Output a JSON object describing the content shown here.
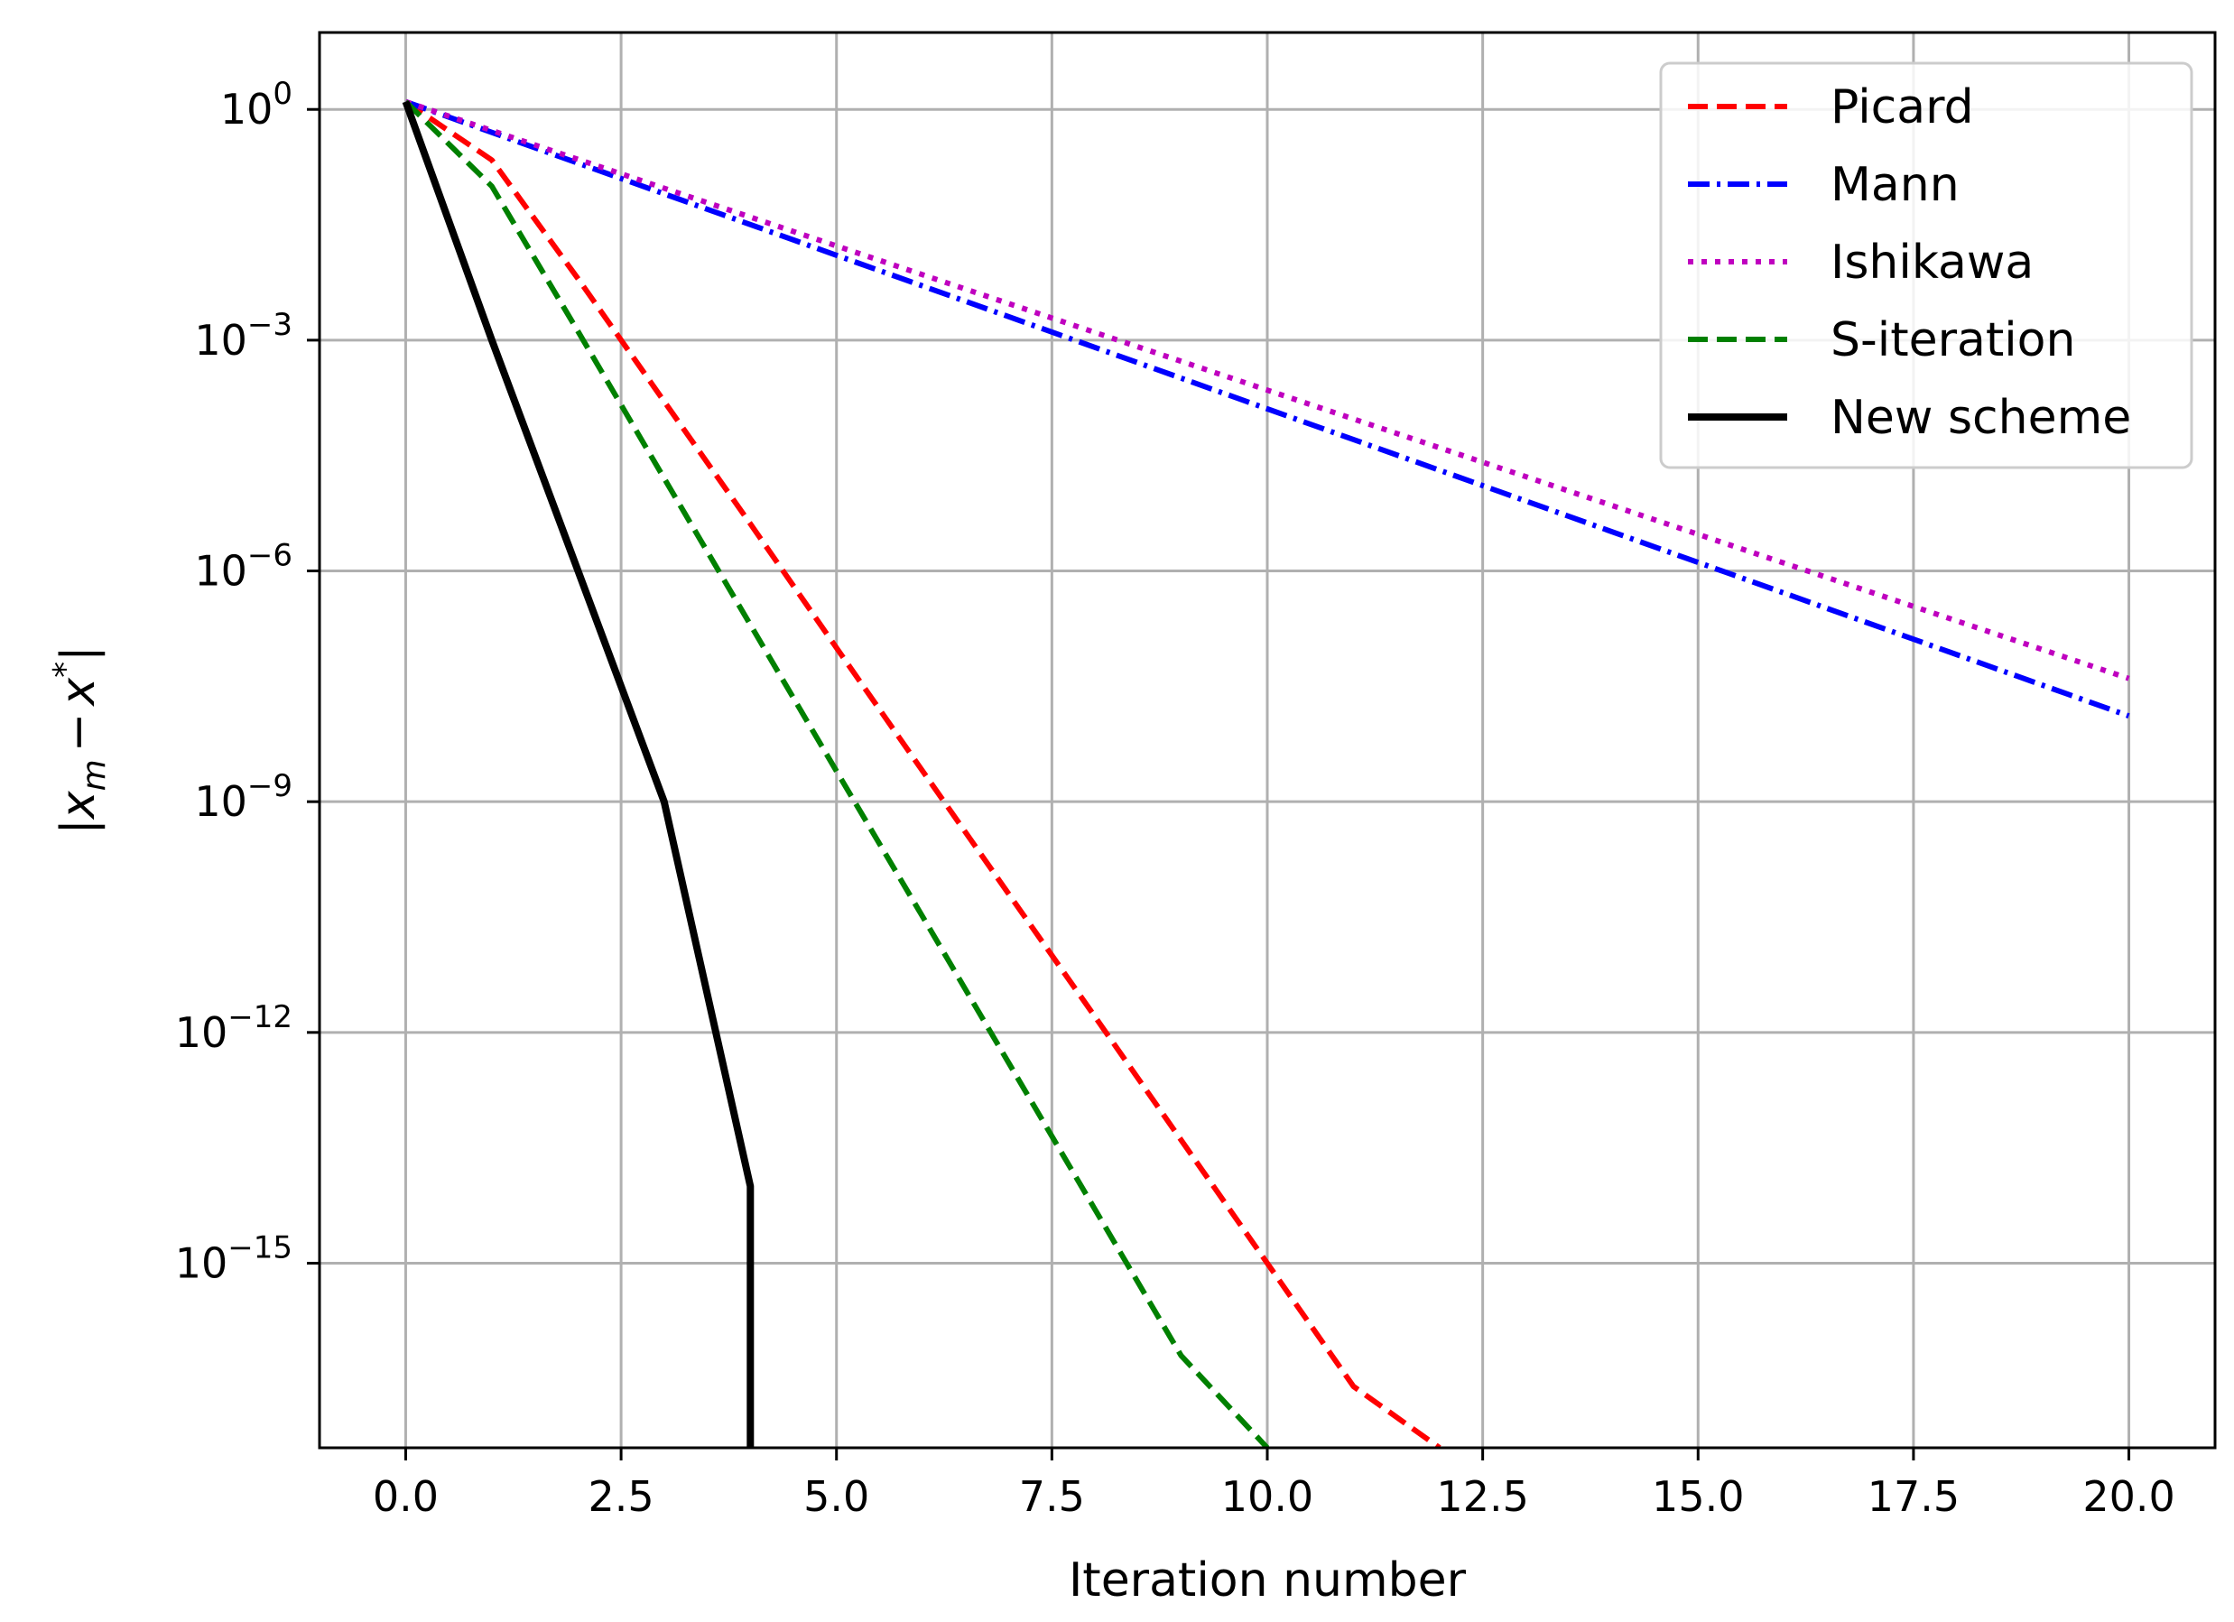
{
  "chart_data": {
    "type": "line",
    "title": "",
    "xlabel": "Iteration number",
    "ylabel": "|x_m − x*|",
    "ylabel_parts": {
      "open": "|",
      "x": "x",
      "m": "m",
      "minus": "−",
      "x2": "x",
      "star": "*",
      "close": "|"
    },
    "xscale": "linear",
    "yscale": "log",
    "xlim": [
      -1,
      21
    ],
    "ylim_log10": [
      -17.4,
      1.0
    ],
    "xticks": [
      0.0,
      2.5,
      5.0,
      7.5,
      10.0,
      12.5,
      15.0,
      17.5,
      20.0
    ],
    "xtick_labels": [
      "0.0",
      "2.5",
      "5.0",
      "7.5",
      "10.0",
      "12.5",
      "15.0",
      "17.5",
      "20.0"
    ],
    "yticks_log10": [
      0,
      -3,
      -6,
      -9,
      -12,
      -15
    ],
    "ytick_labels": [
      {
        "base": "10",
        "exp": "0"
      },
      {
        "base": "10",
        "exp": "−3"
      },
      {
        "base": "10",
        "exp": "−6"
      },
      {
        "base": "10",
        "exp": "−9"
      },
      {
        "base": "10",
        "exp": "−12"
      },
      {
        "base": "10",
        "exp": "−15"
      }
    ],
    "grid": true,
    "legend_position": "top-right",
    "series": [
      {
        "name": "Picard",
        "color": "#ff0000",
        "style": "dashed",
        "x": [
          0,
          1,
          2,
          3,
          4,
          5,
          6,
          7,
          8,
          9,
          10,
          11,
          12,
          12
        ],
        "y": [
          1.26,
          0.22,
          0.0063,
          0.00016,
          4.1e-06,
          1e-07,
          2.5e-09,
          6.3e-11,
          1.6e-12,
          4e-14,
          1e-15,
          2.5e-17,
          6e-19,
          1e-30
        ]
      },
      {
        "name": "Mann",
        "color": "#0000ff",
        "style": "dashdot",
        "x": [
          0,
          20
        ],
        "y": [
          1.26,
          1.3e-08
        ]
      },
      {
        "name": "Ishikawa",
        "color": "#bf00bf",
        "style": "dotted",
        "x": [
          0,
          20
        ],
        "y": [
          1.26,
          4e-08
        ]
      },
      {
        "name": "S-iteration",
        "color": "#008000",
        "style": "dashed",
        "x": [
          0,
          1,
          2,
          3,
          4,
          5,
          6,
          7,
          8,
          9,
          10,
          10
        ],
        "y": [
          1.26,
          0.1,
          0.0013,
          1.6e-05,
          2e-07,
          2.5e-09,
          3.2e-11,
          4e-13,
          5e-15,
          6.3e-17,
          1e-18,
          1e-30
        ]
      },
      {
        "name": "New scheme",
        "color": "#000000",
        "style": "solid",
        "x": [
          0,
          1,
          2,
          3,
          4,
          4
        ],
        "y": [
          1.26,
          0.001,
          1e-06,
          1e-09,
          1e-14,
          1e-30
        ]
      }
    ]
  }
}
